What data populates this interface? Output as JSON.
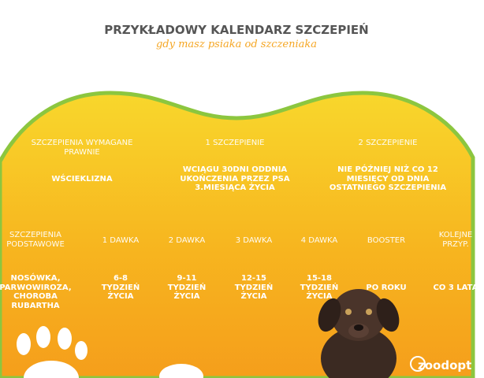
{
  "header": {
    "title": "PRZYKŁADOWY KALENDARZ SZCZEPIEŃ",
    "subtitle": "gdy masz psiaka od szczeniaka"
  },
  "required": {
    "headers": [
      "SZCZEPIENIA WYMAGANE PRAWNIE",
      "1 SZCZEPIENIE",
      "2 SZCZEPIENIE"
    ],
    "cells": [
      "WŚCIEKLIZNA",
      "WCIĄGU 30DNI ODDNIA UKOŃCZENIA PRZEZ PSA 3.MIESIĄCA ŻYCIA",
      "NIE PÓŹNIEJ NIŻ CO 12 MIESIĘCY OD DNIA OSTATNIEGO SZCZEPIENIA"
    ]
  },
  "basic": {
    "headers": [
      "SZCZEPIENIA PODSTAWOWE",
      "1 DAWKA",
      "2 DAWKA",
      "3 DAWKA",
      "4 DAWKA",
      "BOOSTER",
      "KOLEJNE PRZYP."
    ],
    "cells": [
      "NOSÓWKA, PARWOWIROZA, CHOROBA RUBARTHA",
      "6-8 TYDZIEŃ ŻYCIA",
      "9-11 TYDZIEŃ ŻYCIA",
      "12-15 TYDZIEŃ ŻYCIA",
      "15-18 TYDZIEŃ ŻYCIA",
      "PO ROKU",
      "CO 3 LATA"
    ]
  },
  "brand": "zoodopt"
}
